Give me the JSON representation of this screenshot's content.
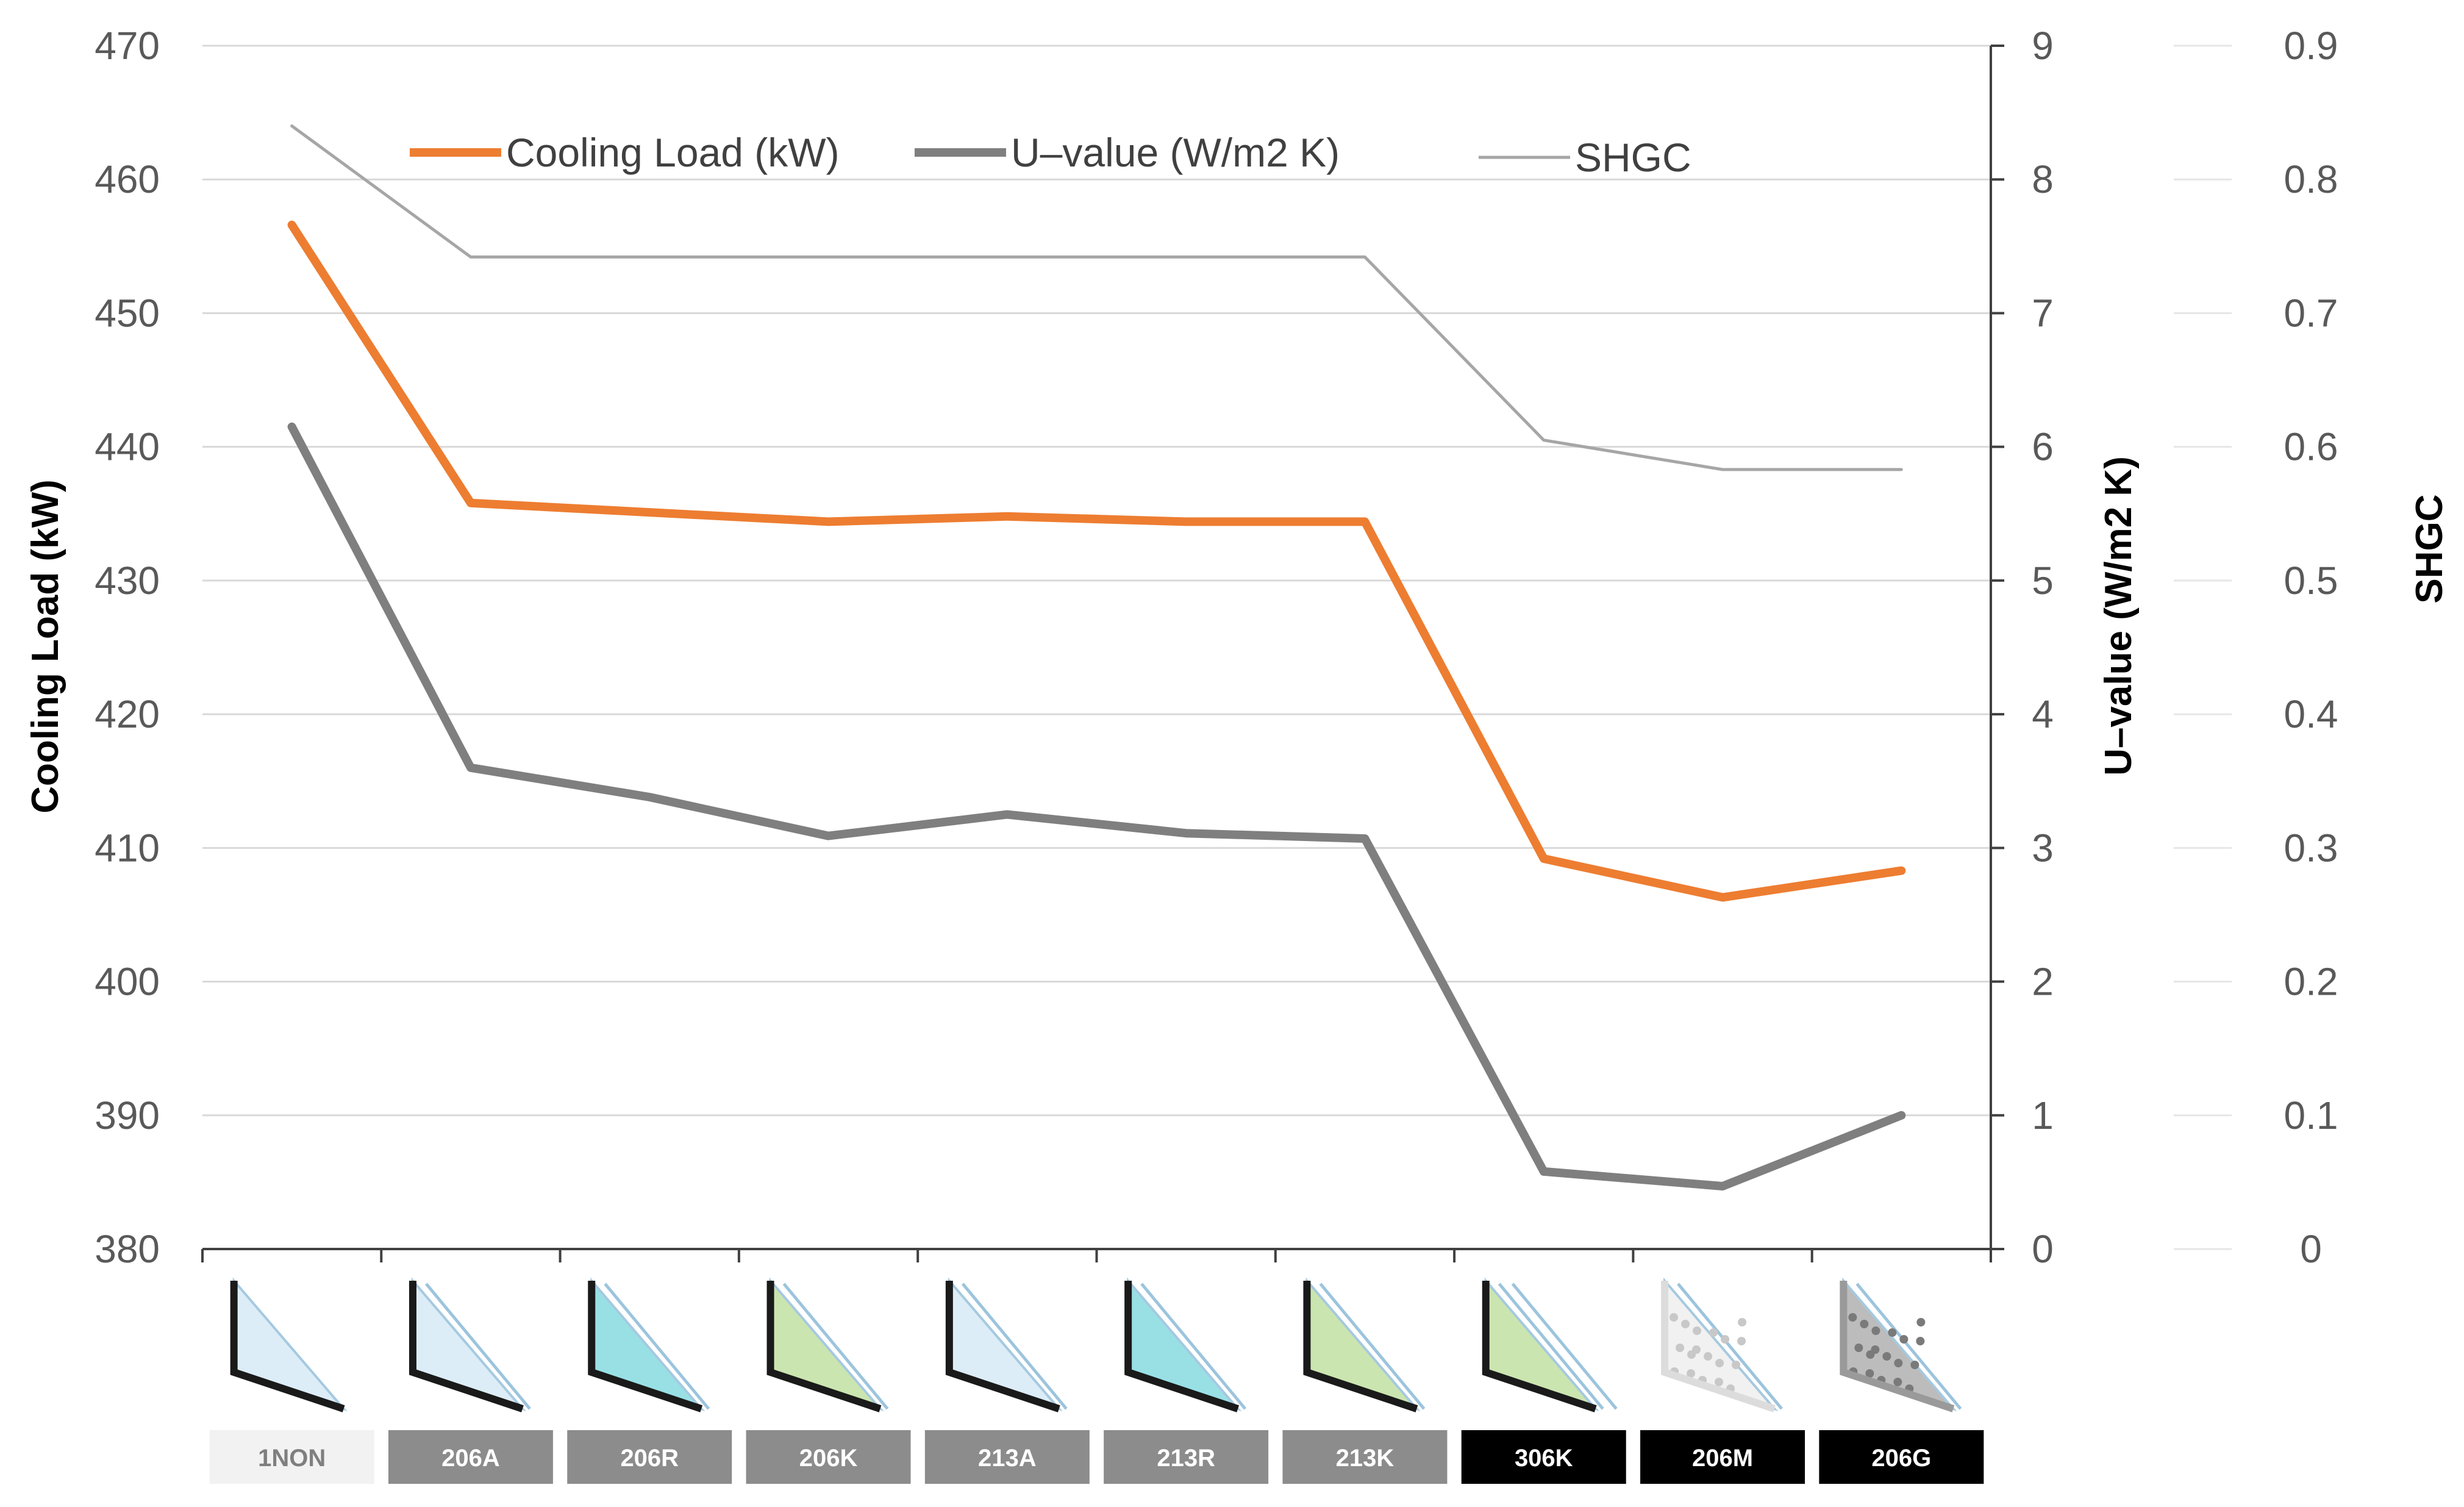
{
  "chart_data": {
    "type": "line",
    "categories": [
      "1NON",
      "206A",
      "206R",
      "206K",
      "213A",
      "213R",
      "213K",
      "306K",
      "206M",
      "206G"
    ],
    "category_label_styles": [
      {
        "bg": "#f2f2f2",
        "fg": "#7f7f7f"
      },
      {
        "bg": "#8c8c8c",
        "fg": "#ffffff"
      },
      {
        "bg": "#8c8c8c",
        "fg": "#ffffff"
      },
      {
        "bg": "#8c8c8c",
        "fg": "#ffffff"
      },
      {
        "bg": "#8c8c8c",
        "fg": "#ffffff"
      },
      {
        "bg": "#8c8c8c",
        "fg": "#ffffff"
      },
      {
        "bg": "#8c8c8c",
        "fg": "#ffffff"
      },
      {
        "bg": "#000000",
        "fg": "#ffffff"
      },
      {
        "bg": "#000000",
        "fg": "#ffffff"
      },
      {
        "bg": "#000000",
        "fg": "#ffffff"
      }
    ],
    "glass_icons": [
      {
        "panes": 1,
        "tint": "#d9ecf7",
        "frame": "#1a1a1a"
      },
      {
        "panes": 2,
        "tint": "#d9ecf7",
        "frame": "#1a1a1a"
      },
      {
        "panes": 2,
        "tint": "#8fdde3",
        "frame": "#1a1a1a"
      },
      {
        "panes": 2,
        "tint": "#c6e3a8",
        "frame": "#1a1a1a"
      },
      {
        "panes": 2,
        "tint": "#d9ecf7",
        "frame": "#1a1a1a"
      },
      {
        "panes": 2,
        "tint": "#8fdde3",
        "frame": "#1a1a1a"
      },
      {
        "panes": 2,
        "tint": "#c6e3a8",
        "frame": "#1a1a1a"
      },
      {
        "panes": 3,
        "tint": "#c6e3a8",
        "frame": "#1a1a1a"
      },
      {
        "panes": 2,
        "tint": "#f0f0f0",
        "frame": "#dcdcdc",
        "pattern": "#c8c8c8"
      },
      {
        "panes": 2,
        "tint": "#b5b5b5",
        "frame": "#9a9a9a",
        "pattern": "#7a7a7a"
      }
    ],
    "series": [
      {
        "name": "Cooling Load (kW)",
        "axis": "left",
        "color": "#ed7d31",
        "width": "thick",
        "values": [
          456.6,
          435.8,
          435.1,
          434.4,
          434.8,
          434.4,
          434.4,
          409.2,
          406.3,
          408.3
        ]
      },
      {
        "name": "U–value (W/m2 K)",
        "axis": "right",
        "color": "#7f7f7f",
        "width": "thick",
        "values": [
          6.15,
          3.6,
          3.38,
          3.09,
          3.25,
          3.11,
          3.07,
          0.58,
          0.47,
          1.0
        ]
      },
      {
        "name": "SHGC",
        "axis": "far-right",
        "color": "#a6a6a6",
        "width": "thin",
        "values": [
          0.84,
          0.742,
          0.742,
          0.742,
          0.742,
          0.742,
          0.742,
          0.605,
          0.583,
          0.583
        ]
      }
    ],
    "axes": {
      "left": {
        "title": "Cooling Load (kW)",
        "ylim": [
          380,
          470
        ],
        "ticks": [
          "380",
          "390",
          "400",
          "410",
          "420",
          "430",
          "440",
          "450",
          "460",
          "470"
        ]
      },
      "right": {
        "title": "U–value (W/m2 K)",
        "ylim": [
          0,
          9
        ],
        "ticks": [
          "0",
          "1",
          "2",
          "3",
          "4",
          "5",
          "6",
          "7",
          "8",
          "9"
        ]
      },
      "far_right": {
        "title": "SHGC",
        "ylim": [
          0,
          0.9
        ],
        "ticks": [
          "0",
          "0.1",
          "0.2",
          "0.3",
          "0.4",
          "0.5",
          "0.6",
          "0.7",
          "0.8",
          "0.9"
        ]
      }
    },
    "grid": true,
    "legend": "top"
  }
}
